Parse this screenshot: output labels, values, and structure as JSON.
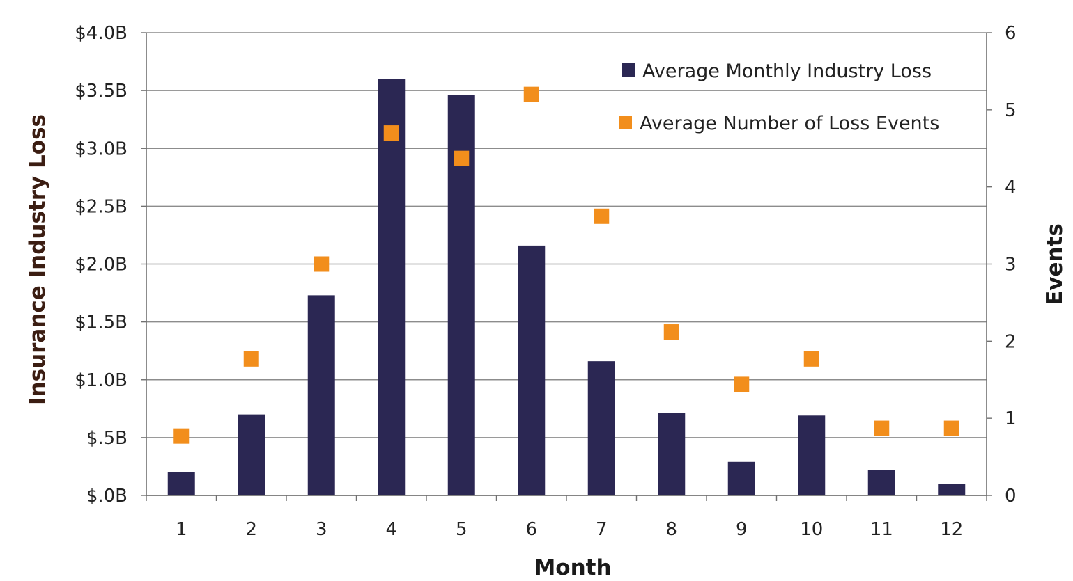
{
  "chart_data": {
    "type": "bar",
    "categories": [
      "1",
      "2",
      "3",
      "4",
      "5",
      "6",
      "7",
      "8",
      "9",
      "10",
      "11",
      "12"
    ],
    "series": [
      {
        "name": "Average Monthly Industry Loss",
        "type": "bar",
        "axis": "left",
        "color": "#2b2753",
        "values": [
          0.2,
          0.7,
          1.73,
          3.6,
          3.46,
          2.16,
          1.16,
          0.71,
          0.29,
          0.69,
          0.22,
          0.1
        ]
      },
      {
        "name": "Average Number of Loss Events",
        "type": "scatter",
        "axis": "right",
        "color": "#f28e1c",
        "values": [
          0.77,
          1.77,
          3.0,
          4.7,
          4.37,
          5.2,
          3.62,
          2.12,
          1.44,
          1.77,
          0.87,
          0.87
        ]
      }
    ],
    "xlabel": "Month",
    "ylabel": "Insurance Industry Loss",
    "y2label": "Events",
    "ylim": [
      0,
      4
    ],
    "y2lim": [
      0,
      6
    ],
    "yticks": [
      0,
      0.5,
      1,
      1.5,
      2,
      2.5,
      3,
      3.5,
      4
    ],
    "ytick_labels": [
      "$.0B",
      "$.5B",
      "$1.0B",
      "$1.5B",
      "$2.0B",
      "$2.5B",
      "$3.0B",
      "$3.5B",
      "$4.0B"
    ],
    "y2ticks": [
      0,
      1,
      2,
      3,
      4,
      5,
      6
    ],
    "y2tick_labels": [
      "0",
      "1",
      "2",
      "3",
      "4",
      "5",
      "6"
    ],
    "grid": true,
    "legend_position": "top-right"
  }
}
